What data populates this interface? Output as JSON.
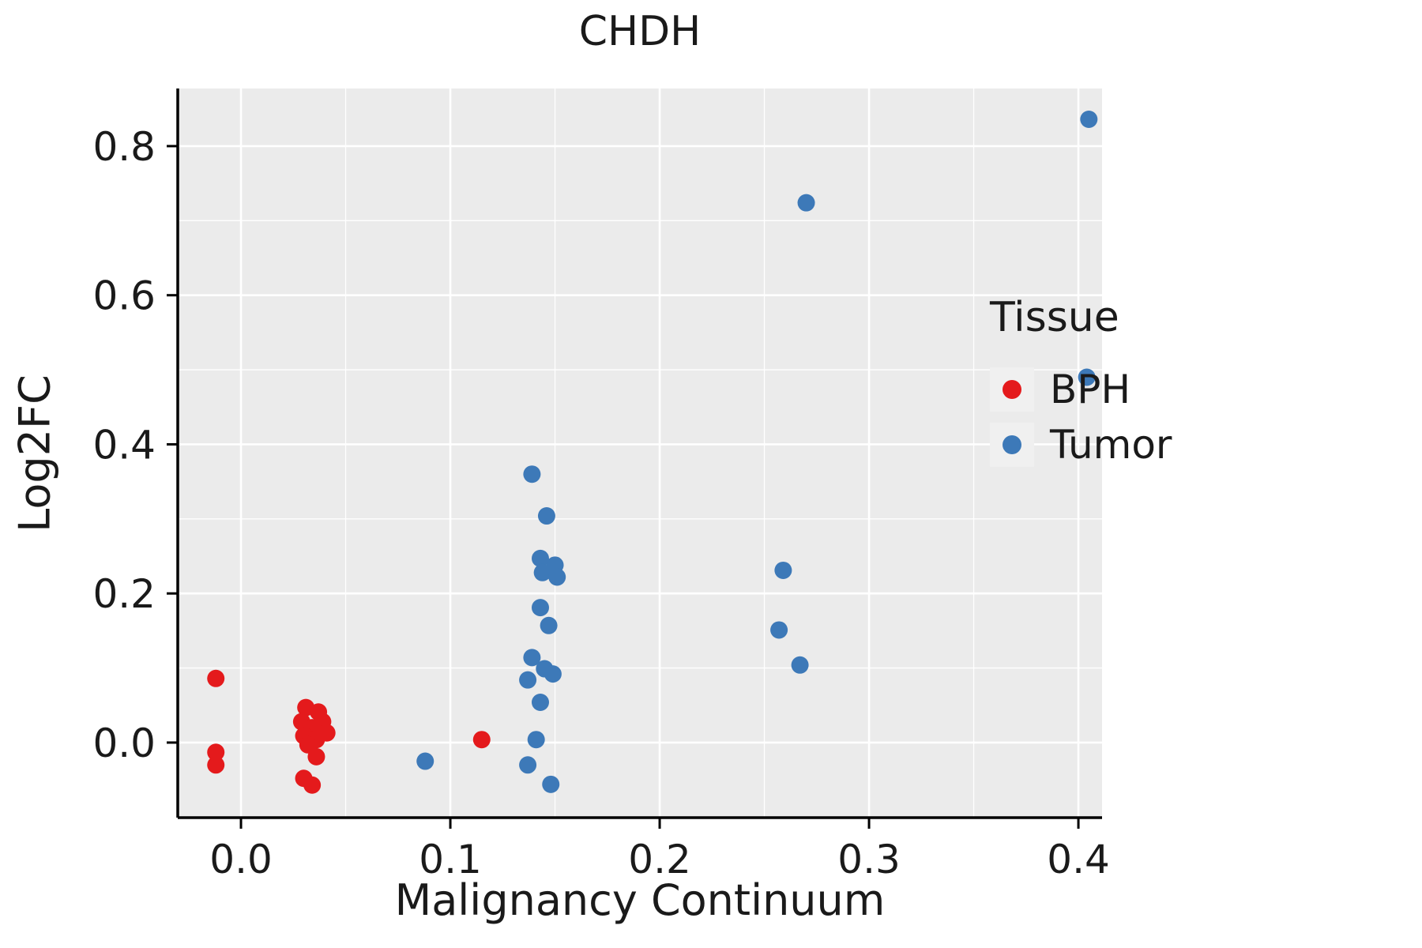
{
  "chart_data": {
    "type": "scatter",
    "title": "CHDH",
    "xlabel": "Malignancy Continuum",
    "ylabel": "Log2FC",
    "xlim": [
      -0.0302,
      0.4113
    ],
    "ylim": [
      -0.1007,
      0.8773
    ],
    "xtick_values": [
      0.0,
      0.1,
      0.2,
      0.3,
      0.4
    ],
    "xtick_labels": [
      "0.0",
      "0.1",
      "0.2",
      "0.3",
      "0.4"
    ],
    "ytick_values": [
      0.0,
      0.2,
      0.4,
      0.6,
      0.8
    ],
    "ytick_labels": [
      "0.0",
      "0.2",
      "0.4",
      "0.6",
      "0.8"
    ],
    "x_minor": [
      0.05,
      0.15,
      0.25,
      0.35
    ],
    "y_minor": [
      0.1,
      0.3,
      0.5,
      0.7
    ],
    "grid": true,
    "panel_background": "#ebebeb",
    "gridline_color": "#ffffff",
    "axis_color": "#000000",
    "legend_position": "right",
    "legend": {
      "title": "Tissue",
      "items": [
        {
          "label": "BPH",
          "color": "#e41a1c"
        },
        {
          "label": "Tumor",
          "color": "#3d79b8"
        }
      ]
    },
    "series": [
      {
        "name": "BPH",
        "color": "#e41a1c",
        "points": [
          [
            -0.012,
            0.086
          ],
          [
            -0.012,
            -0.013
          ],
          [
            -0.012,
            -0.03
          ],
          [
            0.031,
            0.047
          ],
          [
            0.037,
            0.041
          ],
          [
            0.029,
            0.028
          ],
          [
            0.039,
            0.028
          ],
          [
            0.034,
            0.02
          ],
          [
            0.03,
            0.009
          ],
          [
            0.036,
            0.004
          ],
          [
            0.041,
            0.013
          ],
          [
            0.032,
            -0.003
          ],
          [
            0.036,
            -0.019
          ],
          [
            0.03,
            -0.048
          ],
          [
            0.034,
            -0.057
          ],
          [
            0.115,
            0.004
          ]
        ]
      },
      {
        "name": "Tumor",
        "color": "#3d79b8",
        "points": [
          [
            0.088,
            -0.025
          ],
          [
            0.139,
            0.36
          ],
          [
            0.146,
            0.304
          ],
          [
            0.143,
            0.247
          ],
          [
            0.15,
            0.238
          ],
          [
            0.144,
            0.228
          ],
          [
            0.151,
            0.222
          ],
          [
            0.143,
            0.181
          ],
          [
            0.147,
            0.157
          ],
          [
            0.139,
            0.114
          ],
          [
            0.145,
            0.099
          ],
          [
            0.149,
            0.092
          ],
          [
            0.137,
            0.084
          ],
          [
            0.143,
            0.054
          ],
          [
            0.141,
            0.004
          ],
          [
            0.137,
            -0.03
          ],
          [
            0.148,
            -0.056
          ],
          [
            0.259,
            0.231
          ],
          [
            0.257,
            0.151
          ],
          [
            0.267,
            0.104
          ],
          [
            0.27,
            0.724
          ],
          [
            0.405,
            0.836
          ],
          [
            0.404,
            0.49
          ]
        ]
      }
    ]
  }
}
